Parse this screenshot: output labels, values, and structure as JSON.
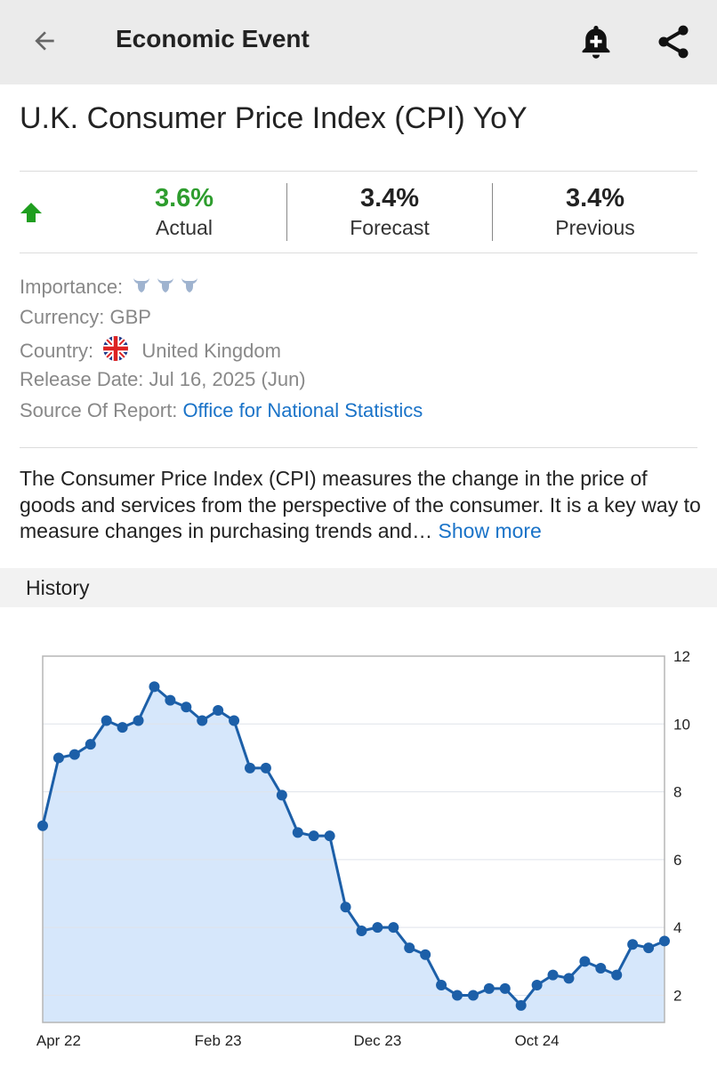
{
  "appbar": {
    "title": "Economic Event",
    "back_icon": "arrow-left-icon",
    "alert_icon": "bell-plus-icon",
    "share_icon": "share-icon"
  },
  "event": {
    "title": "U.K. Consumer Price Index (CPI) YoY",
    "trend_icon": "arrow-up-icon",
    "trend_color": "#1f9e1f",
    "actual_value": "3.6%",
    "actual_label": "Actual",
    "actual_color": "#2e9d2e",
    "forecast_value": "3.4%",
    "forecast_label": "Forecast",
    "previous_value": "3.4%",
    "previous_label": "Previous"
  },
  "details": {
    "importance_label": "Importance:",
    "importance_level": 3,
    "currency": "Currency: GBP",
    "country_label": "Country:",
    "country_name": "United Kingdom",
    "release_date": "Release Date: Jul 16, 2025 (Jun)",
    "source_label": "Source Of Report:",
    "source_link": "Office for National Statistics"
  },
  "description": {
    "text": "The Consumer Price Index (CPI) measures the change in the price of goods and services from the perspective of the consumer. It is a key way to measure changes in purchasing trends and…",
    "show_more": "Show more"
  },
  "history": {
    "label": "History"
  },
  "chart_data": {
    "type": "area",
    "x_tick_labels": [
      "Apr 22",
      "Feb 23",
      "Dec 23",
      "Oct 24"
    ],
    "x_tick_indices": [
      1,
      11,
      21,
      31
    ],
    "y_ticks": [
      2,
      4,
      6,
      8,
      10,
      12
    ],
    "ylim": [
      1.2,
      12
    ],
    "grid": true,
    "y_axis_position": "right",
    "line_color": "#1c5fa8",
    "fill_color": "#d6e7fb",
    "values": [
      7.0,
      9.0,
      9.1,
      9.4,
      10.1,
      9.9,
      10.1,
      11.1,
      10.7,
      10.5,
      10.1,
      10.4,
      10.1,
      8.7,
      8.7,
      7.9,
      6.8,
      6.7,
      6.7,
      4.6,
      3.9,
      4.0,
      4.0,
      3.4,
      3.2,
      2.3,
      2.0,
      2.0,
      2.2,
      2.2,
      1.7,
      2.3,
      2.6,
      2.5,
      3.0,
      2.8,
      2.6,
      3.5,
      3.4,
      3.6
    ]
  }
}
